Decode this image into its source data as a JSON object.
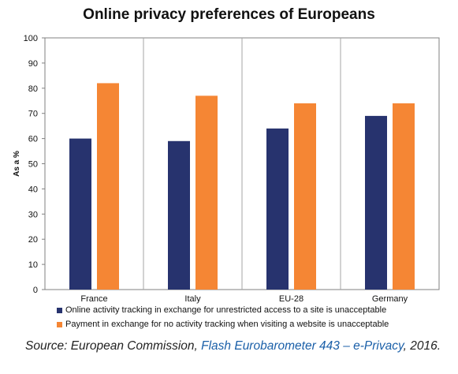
{
  "chart_data": {
    "type": "bar",
    "title": "Online privacy preferences of Europeans",
    "ylabel": "As a %",
    "xlabel": "",
    "ylim": [
      0,
      100
    ],
    "yticks": [
      0,
      10,
      20,
      30,
      40,
      50,
      60,
      70,
      80,
      90,
      100
    ],
    "categories": [
      "France",
      "Italy",
      "EU-28",
      "Germany"
    ],
    "grid": "vertical lines between categories",
    "legend_position": "bottom",
    "series": [
      {
        "name": "Online activity tracking in exchange for unrestricted access to a site is unacceptable",
        "color": "#27336e",
        "values": [
          60,
          59,
          64,
          69
        ]
      },
      {
        "name": "Payment in exchange for no activity tracking when visiting a website is unacceptable",
        "color": "#f58634",
        "values": [
          82,
          77,
          74,
          74
        ]
      }
    ]
  },
  "source": {
    "prefix": "Source: European Commission, ",
    "link_text": "Flash Eurobarometer 443 – e-Privacy",
    "suffix": ", 2016."
  }
}
